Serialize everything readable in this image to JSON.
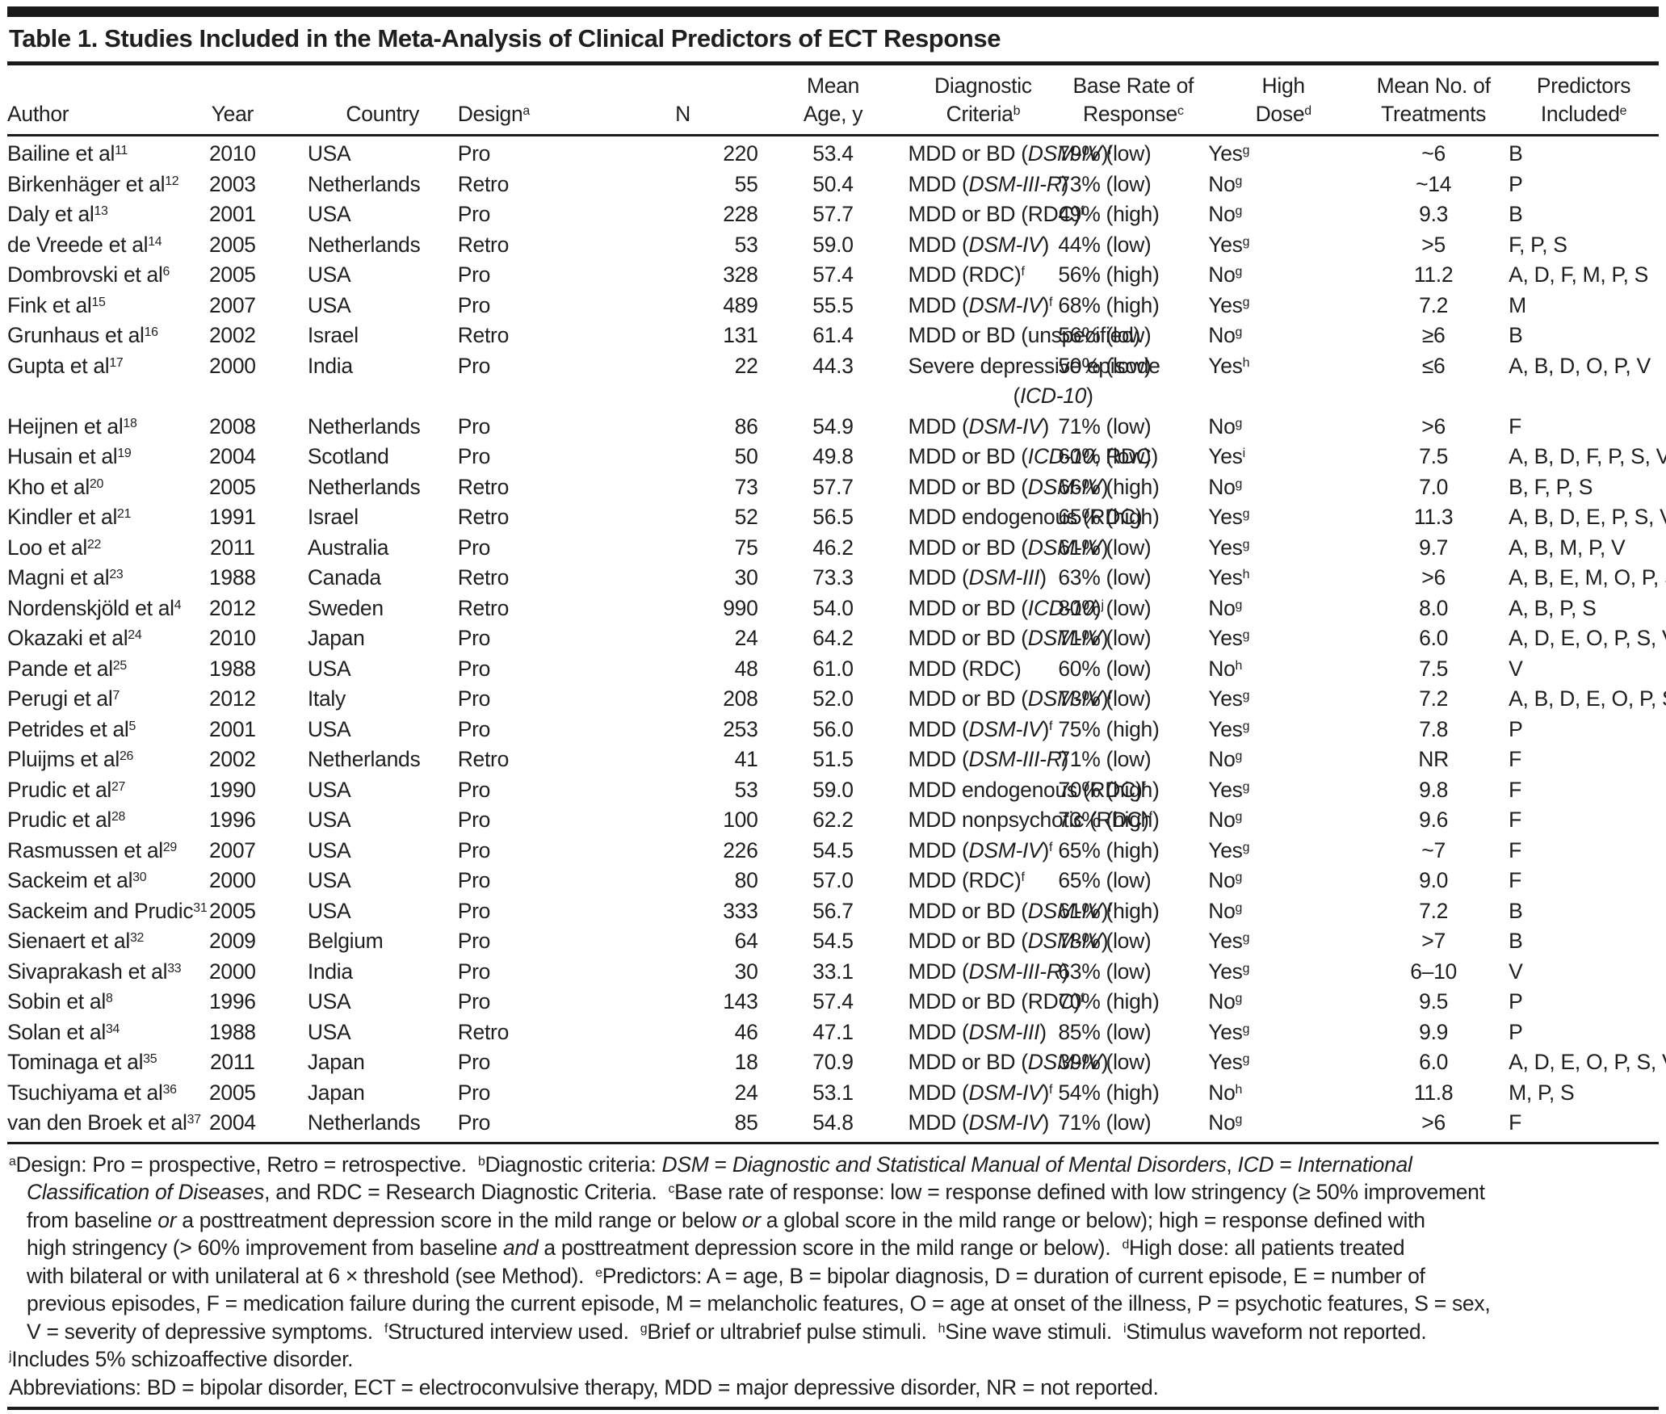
{
  "title": "Table 1. Studies Included in the Meta-Analysis of Clinical Predictors of ECT Response",
  "columns": [
    {
      "key": "author",
      "label": "Author"
    },
    {
      "key": "year",
      "label": "Year"
    },
    {
      "key": "country",
      "label": "Country"
    },
    {
      "key": "design",
      "label": "Design^a^"
    },
    {
      "key": "n",
      "label": "N"
    },
    {
      "key": "age",
      "label": "Mean\nAge, y"
    },
    {
      "key": "criteria",
      "label": "Diagnostic Criteria^b^"
    },
    {
      "key": "base_rate",
      "label": "Base Rate of\nResponse^c^"
    },
    {
      "key": "high_dose",
      "label": "High\nDose^d^"
    },
    {
      "key": "treatments",
      "label": "Mean No. of\nTreatments"
    },
    {
      "key": "predictors",
      "label": "Predictors\nIncluded^e^"
    }
  ],
  "rows": [
    {
      "author": "Bailine et al^11^",
      "year": "2010",
      "country": "USA",
      "design": "Pro",
      "n": "220",
      "age": "53.4",
      "criteria": "MDD or BD (*DSM-IV*)^f^",
      "base_rate": "79% (low)",
      "high_dose": "Yes^g^",
      "treatments": "~6",
      "predictors": "B"
    },
    {
      "author": "Birkenhäger et al^12^",
      "year": "2003",
      "country": "Netherlands",
      "design": "Retro",
      "n": "55",
      "age": "50.4",
      "criteria": "MDD (*DSM-III-R*)",
      "base_rate": "73% (low)",
      "high_dose": "No^g^",
      "treatments": "~14",
      "predictors": "P"
    },
    {
      "author": "Daly et al^13^",
      "year": "2001",
      "country": "USA",
      "design": "Pro",
      "n": "228",
      "age": "57.7",
      "criteria": "MDD or BD (RDC)^f^",
      "base_rate": "49% (high)",
      "high_dose": "No^g^",
      "treatments": "9.3",
      "predictors": "B"
    },
    {
      "author": "de Vreede et al^14^",
      "year": "2005",
      "country": "Netherlands",
      "design": "Retro",
      "n": "53",
      "age": "59.0",
      "criteria": "MDD (*DSM-IV*)",
      "base_rate": "44% (low)",
      "high_dose": "Yes^g^",
      "treatments": ">5",
      "predictors": "F, P, S"
    },
    {
      "author": "Dombrovski et al^6^",
      "year": "2005",
      "country": "USA",
      "design": "Pro",
      "n": "328",
      "age": "57.4",
      "criteria": "MDD (RDC)^f^",
      "base_rate": "56% (high)",
      "high_dose": "No^g^",
      "treatments": "11.2",
      "predictors": "A, D, F, M, P, S"
    },
    {
      "author": "Fink et al^15^",
      "year": "2007",
      "country": "USA",
      "design": "Pro",
      "n": "489",
      "age": "55.5",
      "criteria": "MDD (*DSM-IV*)^f^",
      "base_rate": "68% (high)",
      "high_dose": "Yes^g^",
      "treatments": "7.2",
      "predictors": "M"
    },
    {
      "author": "Grunhaus et al^16^",
      "year": "2002",
      "country": "Israel",
      "design": "Retro",
      "n": "131",
      "age": "61.4",
      "criteria": "MDD or BD (unspecified)",
      "base_rate": "56% (low)",
      "high_dose": "No^g^",
      "treatments": "≥6",
      "predictors": "B"
    },
    {
      "author": "Gupta et al^17^",
      "year": "2000",
      "country": "India",
      "design": "Pro",
      "n": "22",
      "age": "44.3",
      "criteria": "Severe depressive episode",
      "criteria2": "(*ICD-10*)",
      "base_rate": "50% (low)",
      "high_dose": "Yes^h^",
      "treatments": "≤6",
      "predictors": "A, B, D, O, P, V"
    },
    {
      "author": "Heijnen et al^18^",
      "year": "2008",
      "country": "Netherlands",
      "design": "Pro",
      "n": "86",
      "age": "54.9",
      "criteria": "MDD (*DSM-IV*)",
      "base_rate": "71% (low)",
      "high_dose": "No^g^",
      "treatments": ">6",
      "predictors": "F"
    },
    {
      "author": "Husain et al^19^",
      "year": "2004",
      "country": "Scotland",
      "design": "Pro",
      "n": "50",
      "age": "49.8",
      "criteria": "MDD or BD (*ICD-10*, RDC)",
      "base_rate": "60% (low)",
      "high_dose": "Yes^i^",
      "treatments": "7.5",
      "predictors": "A, B, D, F, P, S, V"
    },
    {
      "author": "Kho et al^20^",
      "year": "2005",
      "country": "Netherlands",
      "design": "Retro",
      "n": "73",
      "age": "57.7",
      "criteria": "MDD or BD (*DSM-IV*)",
      "base_rate": "66% (high)",
      "high_dose": "No^g^",
      "treatments": "7.0",
      "predictors": "B, F, P, S"
    },
    {
      "author": "Kindler et al^21^",
      "year": "1991",
      "country": "Israel",
      "design": "Retro",
      "n": "52",
      "age": "56.5",
      "criteria": "MDD endogenous (RDC)",
      "base_rate": "65% (high)",
      "high_dose": "Yes^g^",
      "treatments": "11.3",
      "predictors": "A, B, D, E, P, S, V"
    },
    {
      "author": "Loo et al^22^",
      "year": "2011",
      "country": "Australia",
      "design": "Pro",
      "n": "75",
      "age": "46.2",
      "criteria": "MDD or BD (*DSM-IV*)",
      "base_rate": "61% (low)",
      "high_dose": "Yes^g^",
      "treatments": "9.7",
      "predictors": "A, B, M, P, V"
    },
    {
      "author": "Magni et al^23^",
      "year": "1988",
      "country": "Canada",
      "design": "Retro",
      "n": "30",
      "age": "73.3",
      "criteria": "MDD (*DSM-III*)",
      "base_rate": "63% (low)",
      "high_dose": "Yes^h^",
      "treatments": ">6",
      "predictors": "A, B, E, M, O, P, S"
    },
    {
      "author": "Nordenskjöld et al^4^",
      "year": "2012",
      "country": "Sweden",
      "design": "Retro",
      "n": "990",
      "age": "54.0",
      "criteria": "MDD or BD (*ICD-10*)^j^",
      "base_rate": "80% (low)",
      "high_dose": "No^g^",
      "treatments": "8.0",
      "predictors": "A, B, P, S"
    },
    {
      "author": "Okazaki et al^24^",
      "year": "2010",
      "country": "Japan",
      "design": "Pro",
      "n": "24",
      "age": "64.2",
      "criteria": "MDD or BD (*DSM-IV*)",
      "base_rate": "71% (low)",
      "high_dose": "Yes^g^",
      "treatments": "6.0",
      "predictors": "A, D, E, O, P, S, V"
    },
    {
      "author": "Pande et al^25^",
      "year": "1988",
      "country": "USA",
      "design": "Pro",
      "n": "48",
      "age": "61.0",
      "criteria": "MDD (RDC)",
      "base_rate": "60% (low)",
      "high_dose": "No^h^",
      "treatments": "7.5",
      "predictors": "V"
    },
    {
      "author": "Perugi et al^7^",
      "year": "2012",
      "country": "Italy",
      "design": "Pro",
      "n": "208",
      "age": "52.0",
      "criteria": "MDD or BD (*DSM-IV*)^f^",
      "base_rate": "73% (low)",
      "high_dose": "Yes^g^",
      "treatments": "7.2",
      "predictors": "A, B, D, E, O, P, S, V"
    },
    {
      "author": "Petrides et al^5^",
      "year": "2001",
      "country": "USA",
      "design": "Pro",
      "n": "253",
      "age": "56.0",
      "criteria": "MDD (*DSM-IV*)^f^",
      "base_rate": "75% (high)",
      "high_dose": "Yes^g^",
      "treatments": "7.8",
      "predictors": "P"
    },
    {
      "author": "Pluijms et al^26^",
      "year": "2002",
      "country": "Netherlands",
      "design": "Retro",
      "n": "41",
      "age": "51.5",
      "criteria": "MDD (*DSM-III-R*)",
      "base_rate": "71% (low)",
      "high_dose": "No^g^",
      "treatments": "NR",
      "predictors": "F"
    },
    {
      "author": "Prudic et al^27^",
      "year": "1990",
      "country": "USA",
      "design": "Pro",
      "n": "53",
      "age": "59.0",
      "criteria": "MDD endogenous (RDC)^f^",
      "base_rate": "70% (high)",
      "high_dose": "Yes^g^",
      "treatments": "9.8",
      "predictors": "F"
    },
    {
      "author": "Prudic et al^28^",
      "year": "1996",
      "country": "USA",
      "design": "Pro",
      "n": "100",
      "age": "62.2",
      "criteria": "MDD nonpsychotic (RDC)^f^",
      "base_rate": "73% (high)",
      "high_dose": "No^g^",
      "treatments": "9.6",
      "predictors": "F"
    },
    {
      "author": "Rasmussen et al^29^",
      "year": "2007",
      "country": "USA",
      "design": "Pro",
      "n": "226",
      "age": "54.5",
      "criteria": "MDD (*DSM-IV*)^f^",
      "base_rate": "65% (high)",
      "high_dose": "Yes^g^",
      "treatments": "~7",
      "predictors": "F"
    },
    {
      "author": "Sackeim et al^30^",
      "year": "2000",
      "country": "USA",
      "design": "Pro",
      "n": "80",
      "age": "57.0",
      "criteria": "MDD (RDC)^f^",
      "base_rate": "65% (low)",
      "high_dose": "No^g^",
      "treatments": "9.0",
      "predictors": "F"
    },
    {
      "author": "Sackeim and Prudic^31^",
      "year": "2005",
      "country": "USA",
      "design": "Pro",
      "n": "333",
      "age": "56.7",
      "criteria": "MDD or BD (*DSM-IV*)^f^",
      "base_rate": "61% (high)",
      "high_dose": "No^g^",
      "treatments": "7.2",
      "predictors": "B"
    },
    {
      "author": "Sienaert et al^32^",
      "year": "2009",
      "country": "Belgium",
      "design": "Pro",
      "n": "64",
      "age": "54.5",
      "criteria": "MDD or BD (*DSM-IV*)",
      "base_rate": "78% (low)",
      "high_dose": "Yes^g^",
      "treatments": ">7",
      "predictors": "B"
    },
    {
      "author": "Sivaprakash et al^33^",
      "year": "2000",
      "country": "India",
      "design": "Pro",
      "n": "30",
      "age": "33.1",
      "criteria": "MDD (*DSM-III-R*)",
      "base_rate": "63% (low)",
      "high_dose": "Yes^g^",
      "treatments": "6–10",
      "predictors": "V"
    },
    {
      "author": "Sobin et al^8^",
      "year": "1996",
      "country": "USA",
      "design": "Pro",
      "n": "143",
      "age": "57.4",
      "criteria": "MDD or BD (RDC)^f^",
      "base_rate": "70% (high)",
      "high_dose": "No^g^",
      "treatments": "9.5",
      "predictors": "P"
    },
    {
      "author": "Solan et al^34^",
      "year": "1988",
      "country": "USA",
      "design": "Retro",
      "n": "46",
      "age": "47.1",
      "criteria": "MDD (*DSM-III*)",
      "base_rate": "85% (low)",
      "high_dose": "Yes^g^",
      "treatments": "9.9",
      "predictors": "P"
    },
    {
      "author": "Tominaga et al^35^",
      "year": "2011",
      "country": "Japan",
      "design": "Pro",
      "n": "18",
      "age": "70.9",
      "criteria": "MDD or BD (*DSM-IV*)",
      "base_rate": "39% (low)",
      "high_dose": "Yes^g^",
      "treatments": "6.0",
      "predictors": "A, D, E, O, P, S, V"
    },
    {
      "author": "Tsuchiyama et al^36^",
      "year": "2005",
      "country": "Japan",
      "design": "Pro",
      "n": "24",
      "age": "53.1",
      "criteria": "MDD (*DSM-IV*)^f^",
      "base_rate": "54% (high)",
      "high_dose": "No^h^",
      "treatments": "11.8",
      "predictors": "M, P, S"
    },
    {
      "author": "van den Broek et al^37^",
      "year": "2004",
      "country": "Netherlands",
      "design": "Pro",
      "n": "85",
      "age": "54.8",
      "criteria": "MDD (*DSM-IV*)",
      "base_rate": "71% (low)",
      "high_dose": "No^g^",
      "treatments": ">6",
      "predictors": "F"
    }
  ],
  "footnotes": [
    {
      "cont": false,
      "text": "^a^Design: Pro = prospective, Retro = retrospective.  ^b^Diagnostic criteria: *DSM* = *Diagnostic and Statistical Manual of Mental Disorders*, *ICD* = *International*"
    },
    {
      "cont": true,
      "text": "*Classification of Diseases*, and RDC = Research Diagnostic Criteria.  ^c^Base rate of response: low = response defined with low stringency (≥ 50% improvement"
    },
    {
      "cont": true,
      "text": "from baseline *or* a posttreatment depression score in the mild range or below *or* a global score in the mild range or below); high = response defined with"
    },
    {
      "cont": true,
      "text": "high stringency (> 60% improvement from baseline *and* a posttreatment depression score in the mild range or below).  ^d^High dose: all patients treated"
    },
    {
      "cont": true,
      "text": "with bilateral or with unilateral at 6 × threshold (see Method).  ^e^Predictors: A = age, B = bipolar diagnosis, D = duration of current episode, E = number of"
    },
    {
      "cont": true,
      "text": "previous episodes, F = medication failure during the current episode, M = melancholic features, O = age at onset of the illness, P = psychotic features, S = sex,"
    },
    {
      "cont": true,
      "text": "V = severity of depressive symptoms.  ^f^Structured interview used.  ^g^Brief or ultrabrief pulse stimuli.  ^h^Sine wave stimuli.  ^i^Stimulus waveform not reported."
    },
    {
      "cont": false,
      "text": "^j^Includes 5% schizoaffective disorder."
    },
    {
      "cont": false,
      "text": "Abbreviations: BD = bipolar disorder, ECT = electroconvulsive therapy, MDD = major depressive disorder, NR = not reported."
    }
  ]
}
